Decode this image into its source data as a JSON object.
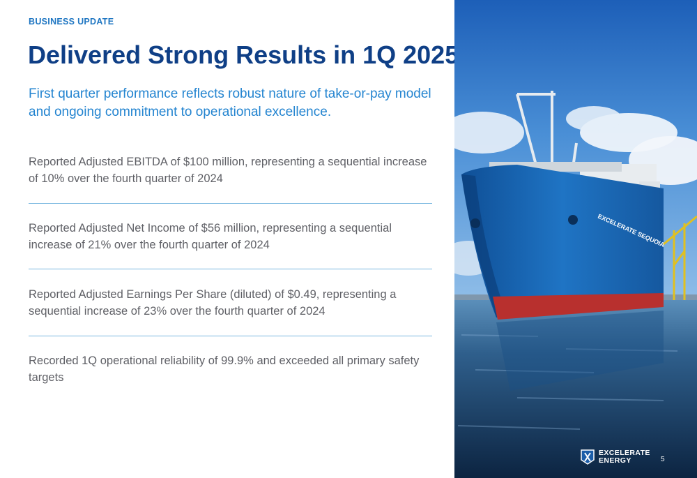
{
  "eyebrow": "BUSINESS UPDATE",
  "title": "Delivered Strong Results in 1Q 2025",
  "subtitle": "First quarter performance reflects robust nature of take-or-pay model and ongoing commitment to operational excellence.",
  "bullets": [
    "Reported Adjusted EBITDA of $100 million, representing a sequential increase of 10% over the fourth quarter of 2024",
    "Reported Adjusted Net Income of $56 million, representing a sequential increase of 21% over the fourth quarter of 2024",
    "Reported Adjusted Earnings Per Share (diluted) of $0.49, representing a sequential increase of 23% over the fourth quarter of 2024",
    "Recorded 1Q operational reliability of 99.9% and exceeded all primary safety targets"
  ],
  "ship_name": "EXCELERATE SEQUOIA",
  "logo": {
    "line1": "EXCELERATE",
    "line2": "ENERGY"
  },
  "page_number": "5",
  "colors": {
    "navy": "#0f3f86",
    "accent_blue": "#1f76c2",
    "body_gray": "#5f6066",
    "divider": "#7ab8e0"
  }
}
